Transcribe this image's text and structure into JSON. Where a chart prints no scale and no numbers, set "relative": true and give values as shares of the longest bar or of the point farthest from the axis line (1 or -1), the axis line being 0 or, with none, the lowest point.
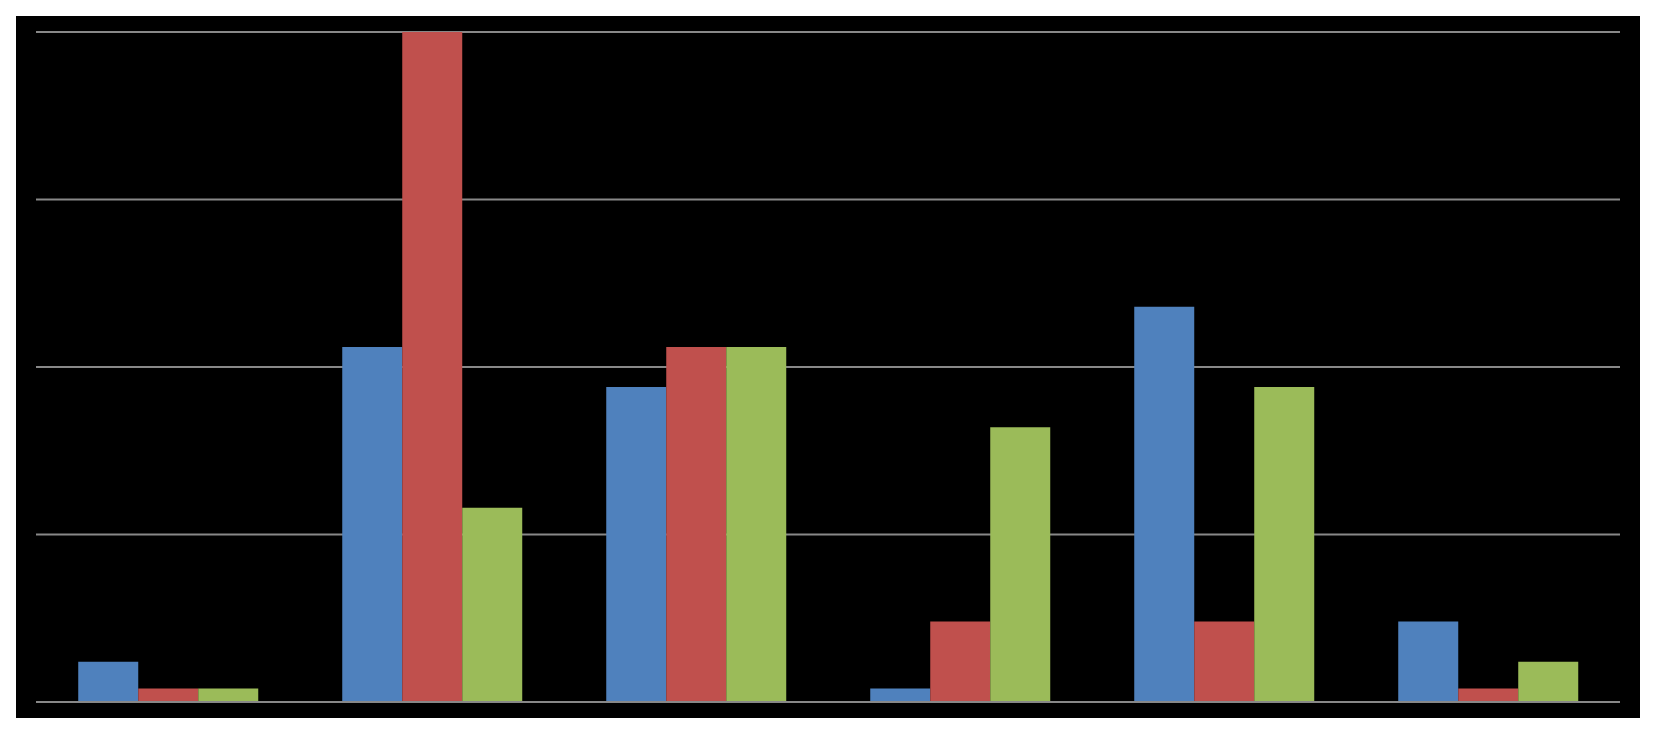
{
  "chart_data": {
    "type": "bar",
    "relative": true,
    "grid": "y",
    "categories": [
      null,
      null,
      null,
      null,
      null,
      null
    ],
    "series": [
      {
        "color": "#4f81bd",
        "values": [
          0.06,
          0.53,
          0.47,
          0.02,
          0.59,
          0.12
        ]
      },
      {
        "color": "#c0504d",
        "values": [
          0.02,
          1,
          0.53,
          0.12,
          0.12,
          0.02
        ]
      },
      {
        "color": "#9bbb59",
        "values": [
          0.02,
          0.29,
          0.53,
          0.41,
          0.47,
          0.06
        ]
      }
    ]
  }
}
